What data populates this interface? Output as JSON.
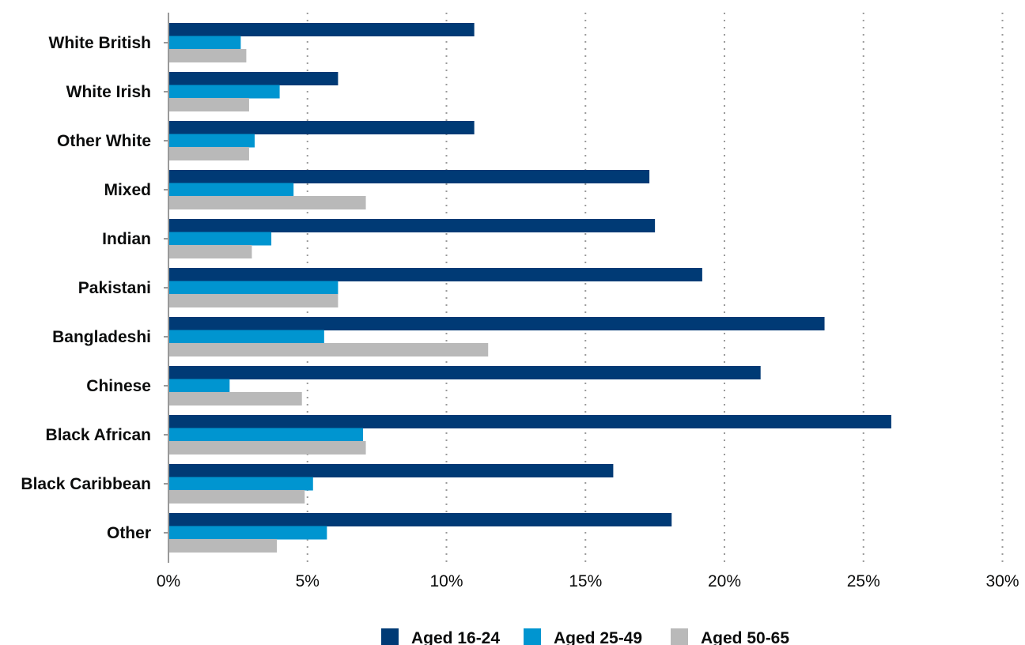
{
  "chart_data": {
    "type": "bar",
    "orientation": "horizontal",
    "categories": [
      "White British",
      "White Irish",
      "Other White",
      "Mixed",
      "Indian",
      "Pakistani",
      "Bangladeshi",
      "Chinese",
      "Black African",
      "Black Caribbean",
      "Other"
    ],
    "series": [
      {
        "name": "Aged 16-24",
        "color": "#003a75",
        "values": [
          11.0,
          6.1,
          11.0,
          17.3,
          17.5,
          19.2,
          23.6,
          21.3,
          26.0,
          16.0,
          18.1
        ]
      },
      {
        "name": "Aged 25-49",
        "color": "#0095d0",
        "values": [
          2.6,
          4.0,
          3.1,
          4.5,
          3.7,
          6.1,
          5.6,
          2.2,
          7.0,
          5.2,
          5.7
        ]
      },
      {
        "name": "Aged 50-65",
        "color": "#b9b9b9",
        "values": [
          2.8,
          2.9,
          2.9,
          7.1,
          3.0,
          6.1,
          11.5,
          4.8,
          7.1,
          4.9,
          3.9
        ]
      }
    ],
    "xlim": [
      0,
      30
    ],
    "xticks": [
      "0%",
      "5%",
      "10%",
      "15%",
      "20%",
      "25%",
      "30%"
    ],
    "grid": "vertical dotted",
    "legend_position": "bottom"
  }
}
